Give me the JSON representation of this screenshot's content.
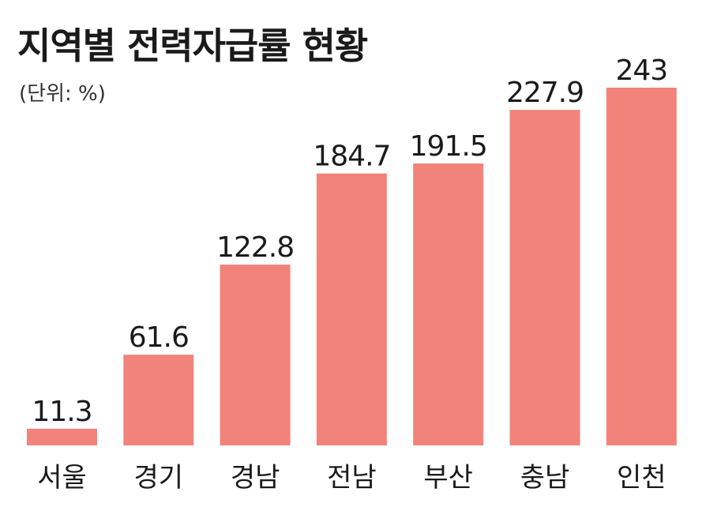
{
  "title": "지역별 전력자급률 현황",
  "unit_note": "(단위: %)",
  "colors": {
    "bar": "#F2837A",
    "text": "#1a1a1a"
  },
  "chart_data": {
    "type": "bar",
    "title": "지역별 전력자급률 현황",
    "ylabel": "",
    "xlabel": "",
    "categories": [
      "서울",
      "경기",
      "경남",
      "전남",
      "부산",
      "충남",
      "인천"
    ],
    "values": [
      11.3,
      61.6,
      122.8,
      184.7,
      191.5,
      227.9,
      243
    ],
    "value_labels": [
      "11.3",
      "61.6",
      "122.8",
      "184.7",
      "191.5",
      "227.9",
      "243"
    ],
    "ylim": [
      0,
      243
    ],
    "grid": false,
    "legend": "none"
  }
}
